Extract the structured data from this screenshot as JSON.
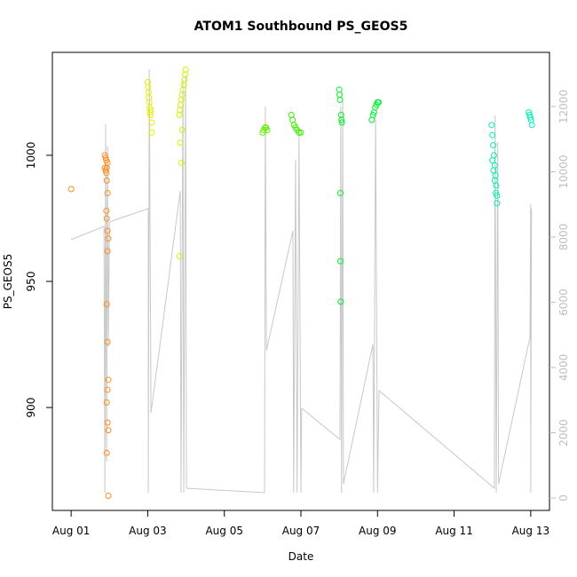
{
  "chart_data": {
    "type": "scatter",
    "title": "ATOM1 Southbound PS_GEOS5",
    "x_label": "Date",
    "y_label": "PS_GEOS5",
    "xlim": [
      -0.49,
      12.49
    ],
    "xticks": [
      {
        "value": 0,
        "label": "Aug 01"
      },
      {
        "value": 2,
        "label": "Aug 03"
      },
      {
        "value": 4,
        "label": "Aug 05"
      },
      {
        "value": 6,
        "label": "Aug 07"
      },
      {
        "value": 8,
        "label": "Aug 09"
      },
      {
        "value": 10,
        "label": "Aug 11"
      },
      {
        "value": 12,
        "label": "Aug 13"
      }
    ],
    "ylim": [
      859.2,
      1040.8
    ],
    "yticks": [
      900,
      950,
      1000
    ],
    "y2lim": [
      -381,
      13660
    ],
    "y2ticks": [
      0,
      2000,
      4000,
      6000,
      8000,
      10000,
      12000
    ],
    "y2_color": "#bebebe",
    "series": [
      {
        "mode": "line",
        "axis": "y2",
        "color": "#c8c8c8",
        "x": [
          0,
          0.857,
          0.88,
          0.9,
          0.927,
          0.95,
          0.973,
          1.0,
          2.015,
          2.015,
          2.04,
          2.085,
          2.85,
          2.87,
          2.92,
          2.94,
          2.99,
          3.01,
          5.05,
          5.07,
          5.1,
          5.79,
          5.81,
          5.86,
          5.9,
          5.95,
          6.0,
          6.02,
          7.02,
          7.04,
          7.06,
          7.09,
          7.11,
          7.88,
          7.9,
          7.95,
          8.0,
          8.04,
          11.05,
          11.07,
          11.1,
          11.14,
          11.16,
          11.98,
          12.0,
          12.0,
          12.02
        ],
        "values": [
          7918,
          8327,
          163,
          11456,
          1116,
          10776,
          4653,
          8463,
          8871,
          163,
          13143,
          2612,
          9415,
          163,
          12816,
          163,
          12952,
          299,
          163,
          12000,
          4517,
          8190,
          163,
          10367,
          163,
          11184,
          163,
          2748,
          1796,
          12000,
          163,
          12272,
          435,
          4707,
          163,
          11728,
          163,
          3293,
          299,
          11728,
          163,
          10912,
          435,
          4925,
          9007,
          163,
          8871
        ]
      },
      {
        "mode": "points",
        "color": "#ff8c1a",
        "x": [
          0,
          0.88,
          0.9,
          0.92,
          0.93,
          0.88,
          0.9,
          0.92,
          0.95,
          0.93,
          0.95,
          0.92,
          0.93,
          0.95,
          0.97,
          0.95,
          0.93,
          0.95,
          0.97,
          0.95,
          0.93,
          0.95,
          0.97,
          0.93,
          0.97
        ],
        "values": [
          986.6,
          995,
          994,
          993,
          995,
          1000,
          999,
          998,
          997,
          990,
          985,
          978,
          975,
          970,
          967,
          962,
          941,
          926,
          911,
          907,
          902,
          894,
          891,
          882,
          865
        ]
      },
      {
        "mode": "points",
        "color": "#e6f000",
        "x": [
          2.0,
          2.01,
          2.02,
          2.03,
          2.04,
          2.05,
          2.06,
          2.07,
          2.08,
          2.1,
          2.1
        ],
        "values": [
          1029,
          1027,
          1025,
          1023,
          1021,
          1019,
          1017,
          1016,
          1018,
          1013,
          1009
        ]
      },
      {
        "mode": "points",
        "color": "#d2f000",
        "x": [
          2.82,
          2.84,
          2.86,
          2.88,
          2.9,
          2.92,
          2.94,
          2.96,
          2.98,
          2.99,
          2.85,
          2.88,
          2.83,
          2.9
        ],
        "values": [
          1016,
          1018,
          1020,
          1022,
          1024,
          1026,
          1028,
          1030,
          1032,
          1034,
          1005,
          997,
          960,
          1010
        ]
      },
      {
        "mode": "points",
        "color": "#64f000",
        "x": [
          5.0,
          5.03,
          5.06,
          5.09,
          5.12
        ],
        "values": [
          1009,
          1010,
          1011,
          1011,
          1010
        ]
      },
      {
        "mode": "points",
        "color": "#3cf000",
        "x": [
          5.75,
          5.78,
          5.82,
          5.86,
          5.9,
          5.95,
          6.0
        ],
        "values": [
          1016,
          1014,
          1012,
          1011,
          1010,
          1009,
          1009
        ]
      },
      {
        "mode": "points",
        "color": "#00f030",
        "x": [
          7.0,
          7.01,
          7.02,
          7.03,
          7.03,
          7.04,
          7.05,
          7.06,
          7.07,
          7.85,
          7.88,
          7.91,
          7.94,
          7.97,
          8.0,
          8.03
        ],
        "values": [
          1026,
          1024,
          1022,
          985,
          958,
          942,
          1016,
          1014,
          1013,
          1014,
          1016,
          1017,
          1019,
          1020,
          1021,
          1021
        ]
      },
      {
        "mode": "points",
        "color": "#00f0b4",
        "x": [
          10.98,
          11.0,
          11.02,
          11.04,
          11.06,
          11.08,
          11.1,
          11.12,
          11.0,
          11.03,
          11.06,
          11.09,
          11.12,
          11.95,
          11.97,
          11.99,
          12.01,
          12.03
        ],
        "values": [
          1012,
          1008,
          1004,
          1000,
          996,
          992,
          988,
          984,
          998,
          994,
          990,
          985,
          981,
          1017,
          1016,
          1015,
          1014,
          1012
        ]
      }
    ]
  }
}
